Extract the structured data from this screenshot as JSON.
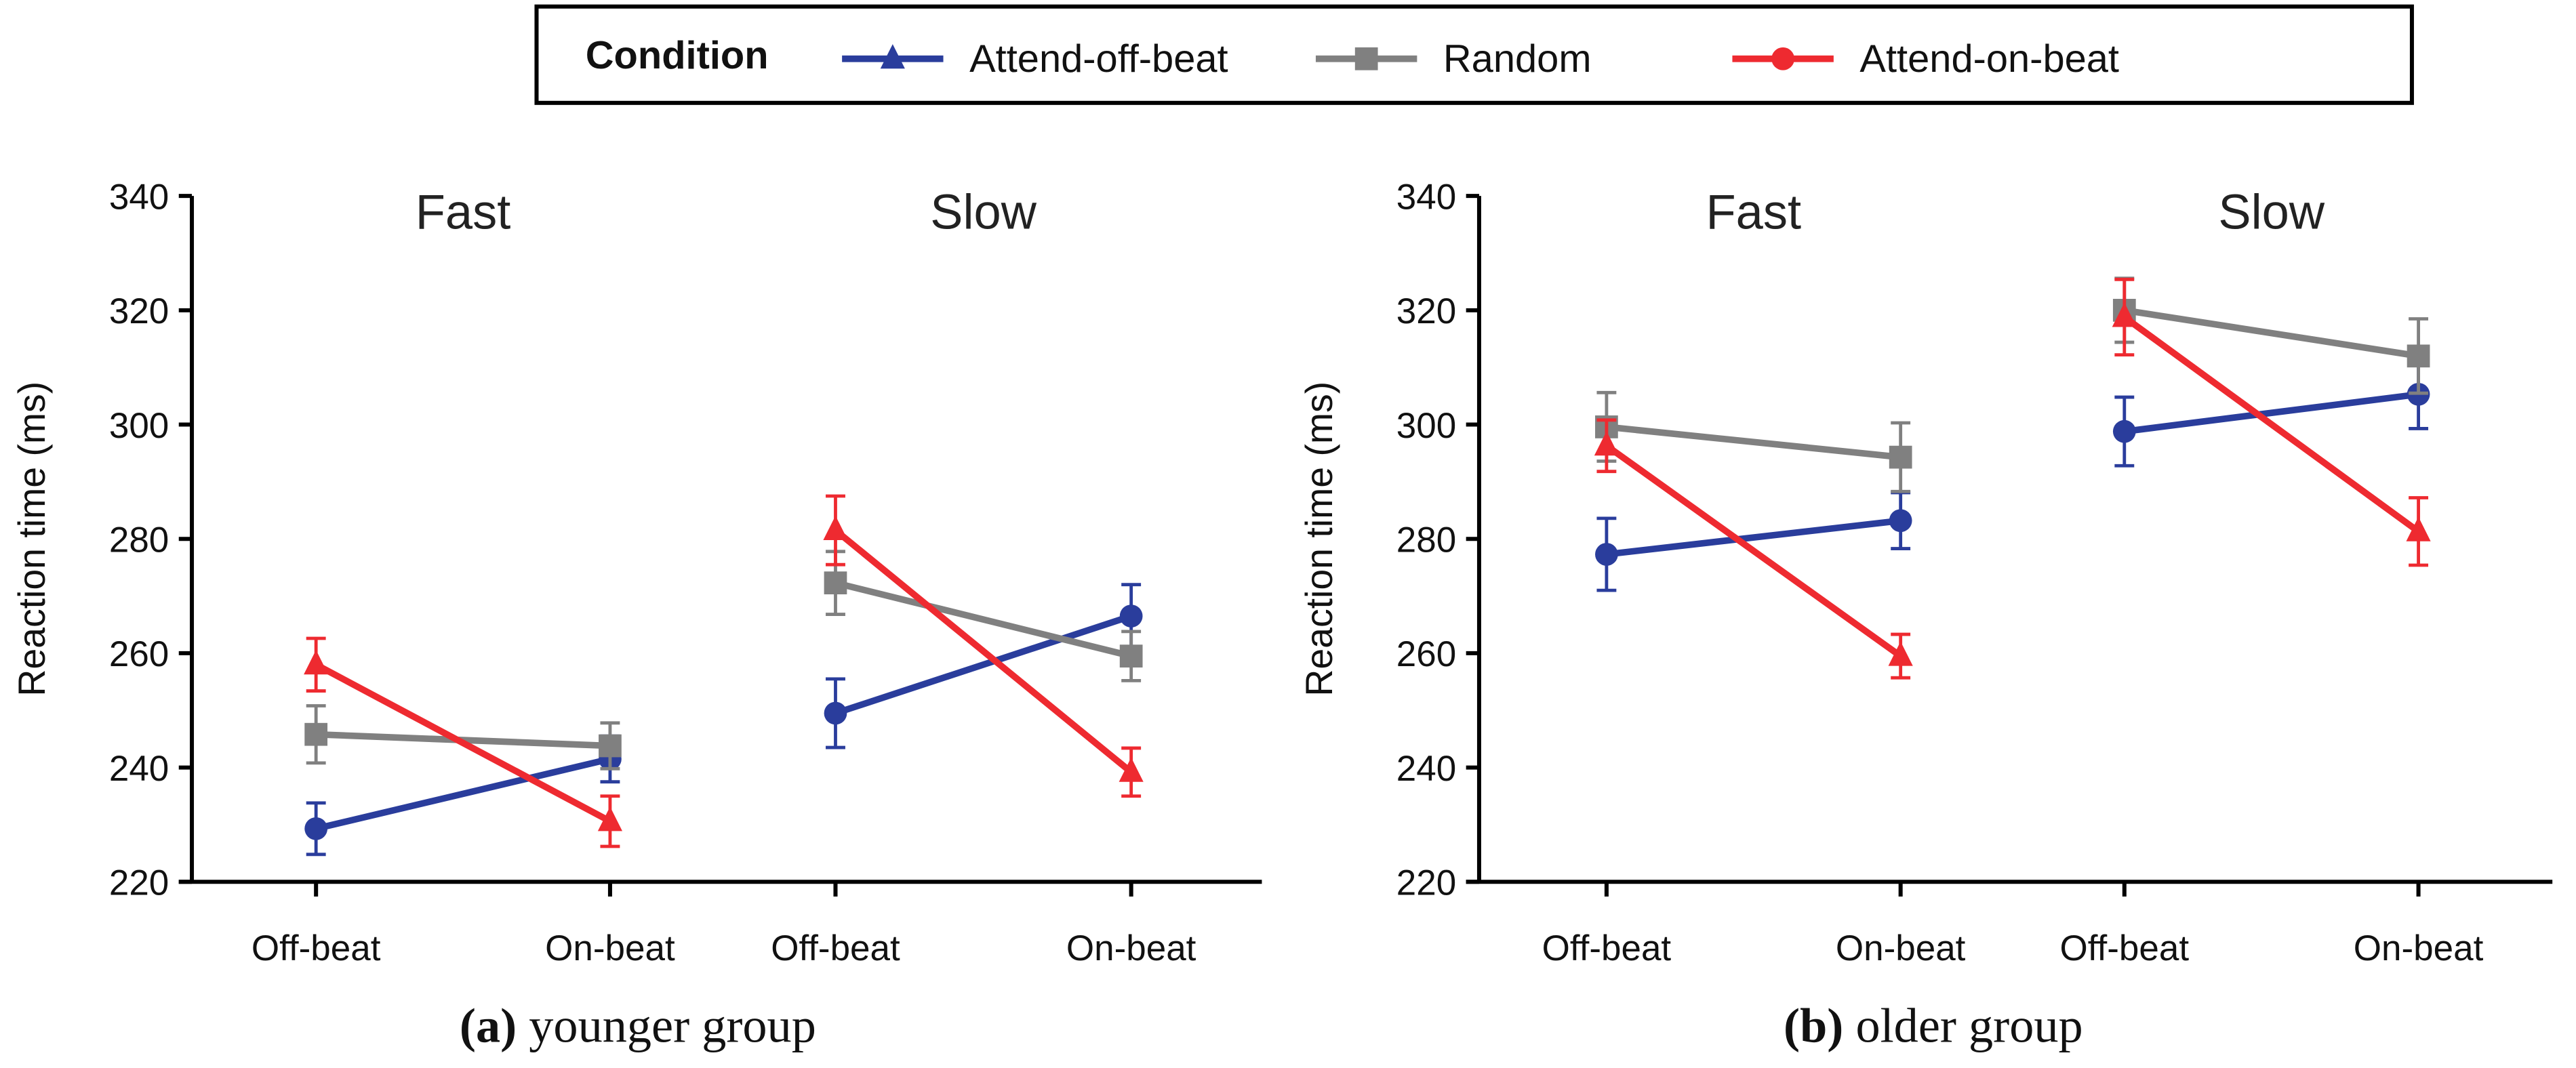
{
  "colors": {
    "blue": "#2a3d9c",
    "gray": "#808080",
    "red": "#ee2a30"
  },
  "legend": {
    "title": "Condition",
    "entries": [
      {
        "label": "Attend-off-beat",
        "color": "#2a3d9c",
        "marker": "triangle"
      },
      {
        "label": "Random",
        "color": "#808080",
        "marker": "square"
      },
      {
        "label": "Attend-on-beat",
        "color": "#ee2a30",
        "marker": "circle"
      }
    ]
  },
  "chart_data": [
    {
      "type": "line",
      "caption_letter": "(a)",
      "caption_text": " younger group",
      "ylabel": "Reaction time (ms)",
      "ylim": [
        220,
        340
      ],
      "yticks": [
        220,
        240,
        260,
        280,
        300,
        320,
        340
      ],
      "groups": [
        "Fast",
        "Slow"
      ],
      "categories": [
        "Off-beat",
        "On-beat",
        "Off-beat",
        "On-beat"
      ],
      "series": [
        {
          "name": "blue",
          "color": "#2a3d9c",
          "marker": "circle",
          "values": [
            [
              229.3,
              241.5
            ],
            [
              249.5,
              266.5
            ]
          ],
          "errors": [
            [
              4.5,
              4
            ],
            [
              6,
              5.5
            ]
          ]
        },
        {
          "name": "gray",
          "color": "#808080",
          "marker": "square",
          "values": [
            [
              245.8,
              243.8
            ],
            [
              272.3,
              259.5
            ]
          ],
          "errors": [
            [
              5,
              4
            ],
            [
              5.5,
              4.3
            ]
          ]
        },
        {
          "name": "red",
          "color": "#ee2a30",
          "marker": "triangle",
          "values": [
            [
              258,
              230.6
            ],
            [
              281.5,
              239.2
            ]
          ],
          "errors": [
            [
              4.6,
              4.4
            ],
            [
              6,
              4.2
            ]
          ]
        }
      ]
    },
    {
      "type": "line",
      "caption_letter": "(b)",
      "caption_text": " older group",
      "ylabel": "Reaction time (ms)",
      "ylim": [
        220,
        340
      ],
      "yticks": [
        220,
        240,
        260,
        280,
        300,
        320,
        340
      ],
      "groups": [
        "Fast",
        "Slow"
      ],
      "categories": [
        "Off-beat",
        "On-beat",
        "Off-beat",
        "On-beat"
      ],
      "series": [
        {
          "name": "blue",
          "color": "#2a3d9c",
          "marker": "circle",
          "values": [
            [
              277.3,
              283.2
            ],
            [
              298.8,
              305.3
            ]
          ],
          "errors": [
            [
              6.3,
              4.9
            ],
            [
              6,
              6
            ]
          ]
        },
        {
          "name": "gray",
          "color": "#808080",
          "marker": "square",
          "values": [
            [
              299.6,
              294.3
            ],
            [
              320,
              312
            ]
          ],
          "errors": [
            [
              6,
              6
            ],
            [
              5.6,
              6.5
            ]
          ]
        },
        {
          "name": "red",
          "color": "#ee2a30",
          "marker": "triangle",
          "values": [
            [
              296.3,
              259.5
            ],
            [
              318.8,
              281.3
            ]
          ],
          "errors": [
            [
              4.5,
              3.8
            ],
            [
              6.6,
              5.9
            ]
          ]
        }
      ]
    }
  ]
}
